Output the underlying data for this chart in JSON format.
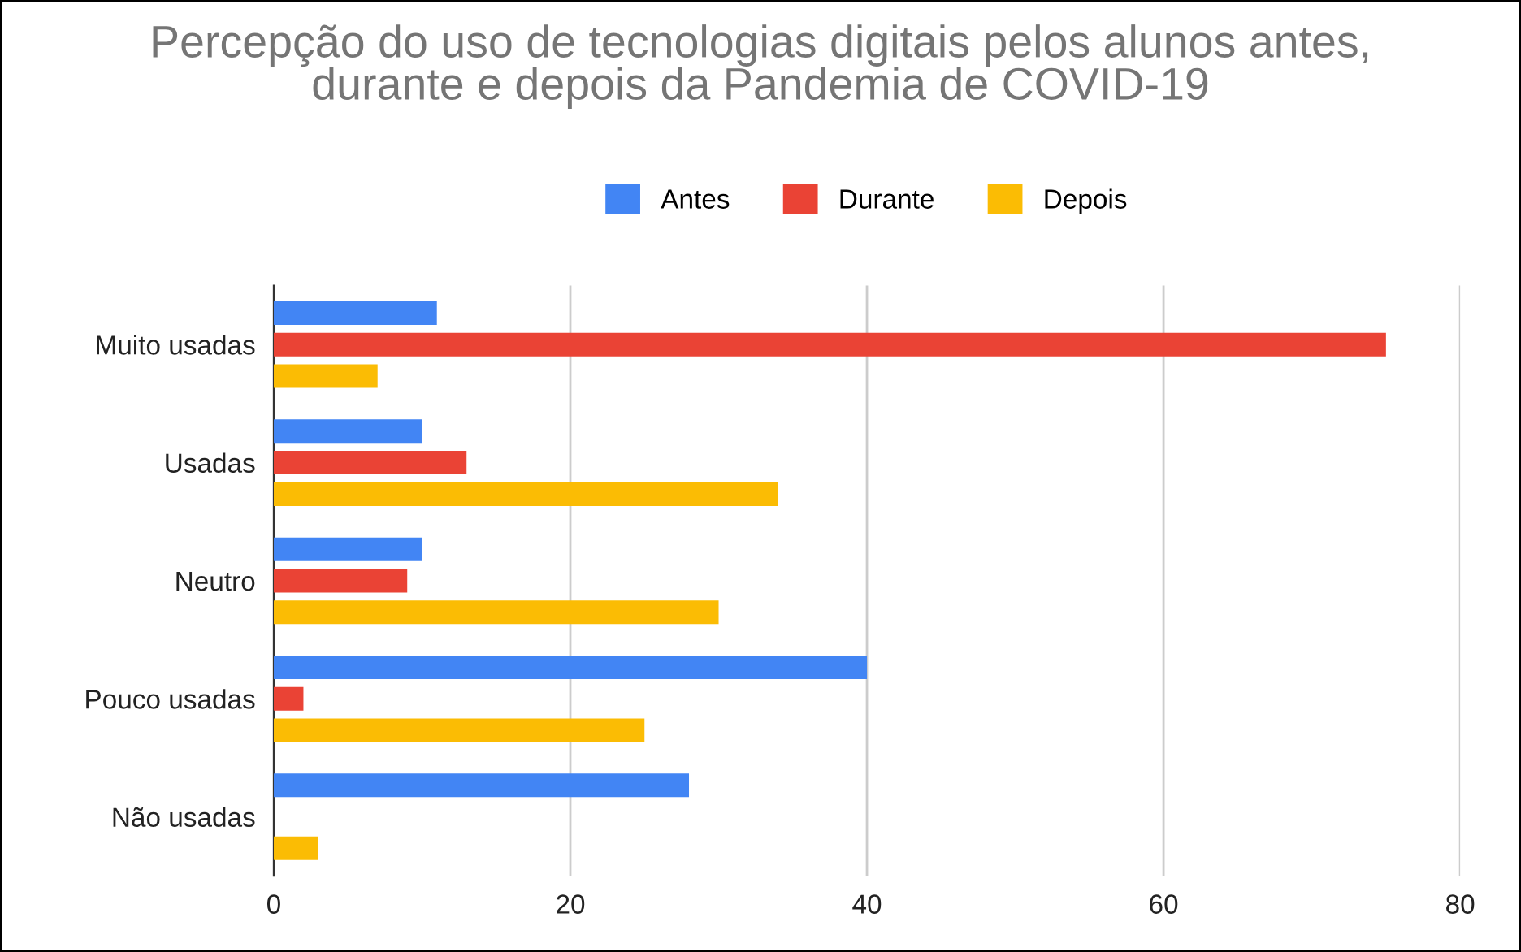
{
  "chart_data": {
    "type": "bar",
    "orientation": "horizontal",
    "title": "Percepção do uso de tecnologias digitais pelos alunos antes,\ndurante e depois da Pandemia de COVID-19",
    "categories": [
      "Muito usadas",
      "Usadas",
      "Neutro",
      "Pouco usadas",
      "Não usadas"
    ],
    "series": [
      {
        "name": "Antes",
        "color": "#4285f4",
        "values": [
          11,
          10,
          10,
          40,
          28
        ]
      },
      {
        "name": "Durante",
        "color": "#ea4335",
        "values": [
          75,
          13,
          9,
          2,
          0
        ]
      },
      {
        "name": "Depois",
        "color": "#fbbc04",
        "values": [
          7,
          34,
          30,
          25,
          3
        ]
      }
    ],
    "xlim": [
      0,
      80
    ],
    "xticks": [
      0,
      20,
      40,
      60,
      80
    ],
    "grid": "x",
    "legend": "top"
  }
}
